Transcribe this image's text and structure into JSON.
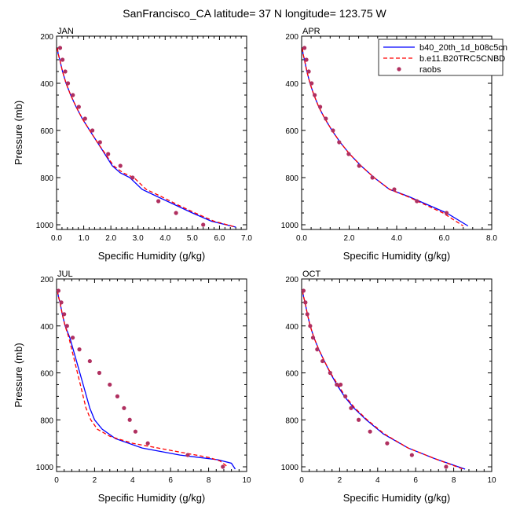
{
  "figure": {
    "title": "SanFrancisco_CA  latitude= 37 N longitude= 123.75 W"
  },
  "legend": {
    "entries": [
      {
        "name": "b40_20th_1d_b08c5cn",
        "style": "solid",
        "color": "#0000ff"
      },
      {
        "name": "b.e11.B20TRC5CNBD",
        "style": "dashed",
        "color": "#ff0000"
      },
      {
        "name": "raobs",
        "style": "marker",
        "color": "#b03060"
      }
    ]
  },
  "chart_data": [
    {
      "type": "line",
      "panel_label": "JAN",
      "xlabel": "Specific Humidity (g/kg)",
      "ylabel": "Pressure (mb)",
      "xlim": [
        0,
        7
      ],
      "ylim": [
        1020,
        200
      ],
      "y_reversed": true,
      "xticks": [
        0,
        1,
        2,
        3,
        4,
        5,
        6,
        7
      ],
      "xtick_labels": [
        "0.0",
        "1.0",
        "2.0",
        "3.0",
        "4.0",
        "5.0",
        "6.0",
        "7.0"
      ],
      "yticks": [
        200,
        400,
        600,
        800,
        1000
      ],
      "ytick_labels": [
        "200",
        "400",
        "600",
        "800",
        "1000"
      ],
      "series": [
        {
          "name": "b40_20th_1d_b08c5cn",
          "style": "solid",
          "color": "#0000ff",
          "x": [
            0.03,
            0.06,
            0.12,
            0.22,
            0.35,
            0.52,
            0.72,
            0.95,
            1.22,
            1.5,
            1.78,
            2.05,
            2.35,
            2.7,
            3.15,
            3.7,
            4.35,
            5.0,
            5.7,
            6.6
          ],
          "y": [
            250,
            275,
            300,
            350,
            400,
            450,
            500,
            550,
            600,
            650,
            700,
            750,
            780,
            800,
            850,
            880,
            915,
            950,
            985,
            1010
          ]
        },
        {
          "name": "b.e11.B20TRC5CNBD",
          "style": "dashed",
          "color": "#ff0000",
          "x": [
            0.03,
            0.06,
            0.12,
            0.22,
            0.35,
            0.52,
            0.72,
            0.95,
            1.22,
            1.5,
            1.8,
            2.1,
            2.45,
            2.85,
            3.3,
            3.85,
            4.45,
            5.1,
            5.8,
            6.6
          ],
          "y": [
            250,
            275,
            300,
            350,
            400,
            450,
            500,
            550,
            600,
            650,
            700,
            750,
            780,
            800,
            850,
            880,
            915,
            950,
            985,
            1010
          ]
        },
        {
          "name": "raobs",
          "style": "marker",
          "color": "#b03060",
          "x": [
            0.13,
            0.22,
            0.32,
            0.42,
            0.6,
            0.82,
            1.05,
            1.32,
            1.6,
            1.9,
            2.35,
            2.8,
            3.75,
            4.4,
            5.4
          ],
          "y": [
            250,
            300,
            350,
            400,
            450,
            500,
            550,
            600,
            650,
            700,
            750,
            800,
            900,
            950,
            1000
          ]
        }
      ]
    },
    {
      "type": "line",
      "panel_label": "APR",
      "xlabel": "Specific Humidity (g/kg)",
      "ylabel": "",
      "xlim": [
        0,
        8
      ],
      "ylim": [
        1020,
        200
      ],
      "y_reversed": true,
      "xticks": [
        0,
        2,
        4,
        6,
        8
      ],
      "xtick_labels": [
        "0.0",
        "2.0",
        "4.0",
        "6.0",
        "8.0"
      ],
      "yticks": [
        200,
        400,
        600,
        800,
        1000
      ],
      "ytick_labels": [
        "200",
        "400",
        "600",
        "800",
        "1000"
      ],
      "series": [
        {
          "name": "b40_20th_1d_b08c5cn",
          "style": "solid",
          "color": "#0000ff",
          "x": [
            0.03,
            0.06,
            0.12,
            0.22,
            0.35,
            0.52,
            0.72,
            0.98,
            1.28,
            1.62,
            2.02,
            2.5,
            3.05,
            3.7,
            4.5,
            5.3,
            6.1,
            7.0
          ],
          "y": [
            250,
            275,
            300,
            350,
            400,
            450,
            500,
            550,
            600,
            650,
            700,
            750,
            800,
            850,
            880,
            915,
            950,
            1005
          ]
        },
        {
          "name": "b.e11.B20TRC5CNBD",
          "style": "dashed",
          "color": "#ff0000",
          "x": [
            0.03,
            0.06,
            0.12,
            0.22,
            0.35,
            0.52,
            0.72,
            0.98,
            1.28,
            1.62,
            2.02,
            2.5,
            3.05,
            3.7,
            4.45,
            5.2,
            5.95,
            6.8
          ],
          "y": [
            250,
            275,
            300,
            350,
            400,
            450,
            500,
            550,
            600,
            650,
            700,
            750,
            800,
            850,
            880,
            915,
            950,
            1005
          ]
        },
        {
          "name": "raobs",
          "style": "marker",
          "color": "#b03060",
          "x": [
            0.12,
            0.2,
            0.3,
            0.42,
            0.55,
            0.78,
            1.02,
            1.32,
            1.58,
            1.98,
            2.42,
            2.98,
            3.9,
            4.85,
            6.1
          ],
          "y": [
            250,
            300,
            350,
            400,
            450,
            500,
            550,
            600,
            650,
            700,
            750,
            800,
            850,
            900,
            950
          ]
        }
      ]
    },
    {
      "type": "line",
      "panel_label": "JUL",
      "xlabel": "Specific Humidity (g/kg)",
      "ylabel": "Pressure (mb)",
      "xlim": [
        0,
        10
      ],
      "ylim": [
        1020,
        200
      ],
      "y_reversed": true,
      "xticks": [
        0,
        2,
        4,
        6,
        8,
        10
      ],
      "xtick_labels": [
        "0",
        "2",
        "4",
        "6",
        "8",
        "10"
      ],
      "yticks": [
        200,
        400,
        600,
        800,
        1000
      ],
      "ytick_labels": [
        "200",
        "400",
        "600",
        "800",
        "1000"
      ],
      "series": [
        {
          "name": "b40_20th_1d_b08c5cn",
          "style": "solid",
          "color": "#0000ff",
          "x": [
            0.05,
            0.1,
            0.18,
            0.3,
            0.45,
            0.7,
            1.05,
            1.4,
            1.75,
            2.0,
            2.4,
            3.1,
            4.5,
            6.5,
            8.5,
            9.2,
            9.4
          ],
          "y": [
            250,
            275,
            300,
            350,
            400,
            450,
            550,
            650,
            750,
            800,
            840,
            880,
            920,
            950,
            970,
            985,
            1010
          ]
        },
        {
          "name": "b.e11.B20TRC5CNBD",
          "style": "dashed",
          "color": "#ff0000",
          "x": [
            0.05,
            0.1,
            0.18,
            0.3,
            0.45,
            0.65,
            0.95,
            1.25,
            1.55,
            1.8,
            2.15,
            2.8,
            4.0,
            6.0,
            8.0,
            8.6,
            9.0
          ],
          "y": [
            250,
            275,
            300,
            350,
            400,
            450,
            550,
            650,
            750,
            800,
            840,
            870,
            900,
            930,
            960,
            975,
            1000
          ]
        },
        {
          "name": "raobs",
          "style": "marker",
          "color": "#b03060",
          "x": [
            0.1,
            0.25,
            0.4,
            0.55,
            0.85,
            1.2,
            1.75,
            2.25,
            2.8,
            3.2,
            3.55,
            3.85,
            4.15,
            4.8,
            6.9,
            8.75
          ],
          "y": [
            250,
            300,
            350,
            400,
            450,
            500,
            550,
            600,
            650,
            700,
            750,
            800,
            850,
            900,
            950,
            1000
          ]
        }
      ]
    },
    {
      "type": "line",
      "panel_label": "OCT",
      "xlabel": "Specific Humidity (g/kg)",
      "ylabel": "",
      "xlim": [
        0,
        10
      ],
      "ylim": [
        1020,
        200
      ],
      "y_reversed": true,
      "xticks": [
        0,
        2,
        4,
        6,
        8,
        10
      ],
      "xtick_labels": [
        "0",
        "2",
        "4",
        "6",
        "8",
        "10"
      ],
      "yticks": [
        200,
        400,
        600,
        800,
        1000
      ],
      "ytick_labels": [
        "200",
        "400",
        "600",
        "800",
        "1000"
      ],
      "series": [
        {
          "name": "b40_20th_1d_b08c5cn",
          "style": "solid",
          "color": "#0000ff",
          "x": [
            0.05,
            0.1,
            0.18,
            0.3,
            0.45,
            0.65,
            0.9,
            1.2,
            1.5,
            1.85,
            2.25,
            2.75,
            3.4,
            4.3,
            5.6,
            7.0,
            8.6
          ],
          "y": [
            250,
            275,
            300,
            350,
            400,
            450,
            500,
            550,
            600,
            650,
            700,
            750,
            800,
            860,
            920,
            965,
            1010
          ]
        },
        {
          "name": "b.e11.B20TRC5CNBD",
          "style": "dashed",
          "color": "#ff0000",
          "x": [
            0.05,
            0.1,
            0.18,
            0.3,
            0.45,
            0.65,
            0.9,
            1.2,
            1.52,
            1.9,
            2.3,
            2.8,
            3.45,
            4.35,
            5.6,
            7.0,
            8.5
          ],
          "y": [
            250,
            275,
            300,
            350,
            400,
            450,
            500,
            550,
            600,
            650,
            700,
            750,
            800,
            860,
            920,
            965,
            1010
          ]
        },
        {
          "name": "raobs",
          "style": "marker",
          "color": "#b03060",
          "x": [
            0.1,
            0.2,
            0.3,
            0.45,
            0.6,
            0.82,
            1.1,
            1.5,
            1.85,
            2.05,
            2.3,
            2.6,
            3.0,
            3.6,
            4.5,
            5.8,
            7.6
          ],
          "y": [
            250,
            300,
            350,
            400,
            450,
            500,
            550,
            600,
            650,
            650,
            700,
            750,
            800,
            850,
            900,
            950,
            1000
          ]
        }
      ]
    }
  ]
}
